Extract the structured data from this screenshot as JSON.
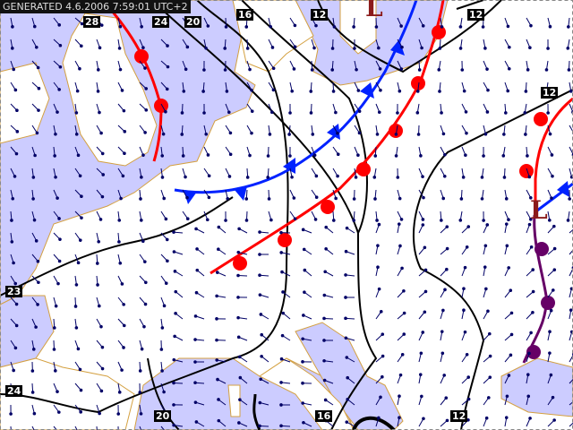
{
  "header": {
    "generated": "GENERATED 4.6.2006 7:59:01 UTC+2"
  },
  "colors": {
    "sea": "#ccccff",
    "land": "#ffffff",
    "coast": "#d4a040",
    "isobar": "#000000",
    "cold_front": "#0022ff",
    "warm_front": "#ff0000",
    "occluded_front": "#660066",
    "wind_arrow": "#000066",
    "low": "#8b1a1a"
  },
  "isobar_labels": [
    "28",
    "20",
    "24",
    "20",
    "16",
    "12",
    "12",
    "12",
    "23",
    "24",
    "20",
    "16",
    "12"
  ],
  "pressure_centers": [
    {
      "type": "low",
      "label": "L"
    },
    {
      "type": "low",
      "label": "L"
    }
  ],
  "fronts": [
    {
      "type": "cold"
    },
    {
      "type": "warm"
    },
    {
      "type": "occluded"
    }
  ]
}
